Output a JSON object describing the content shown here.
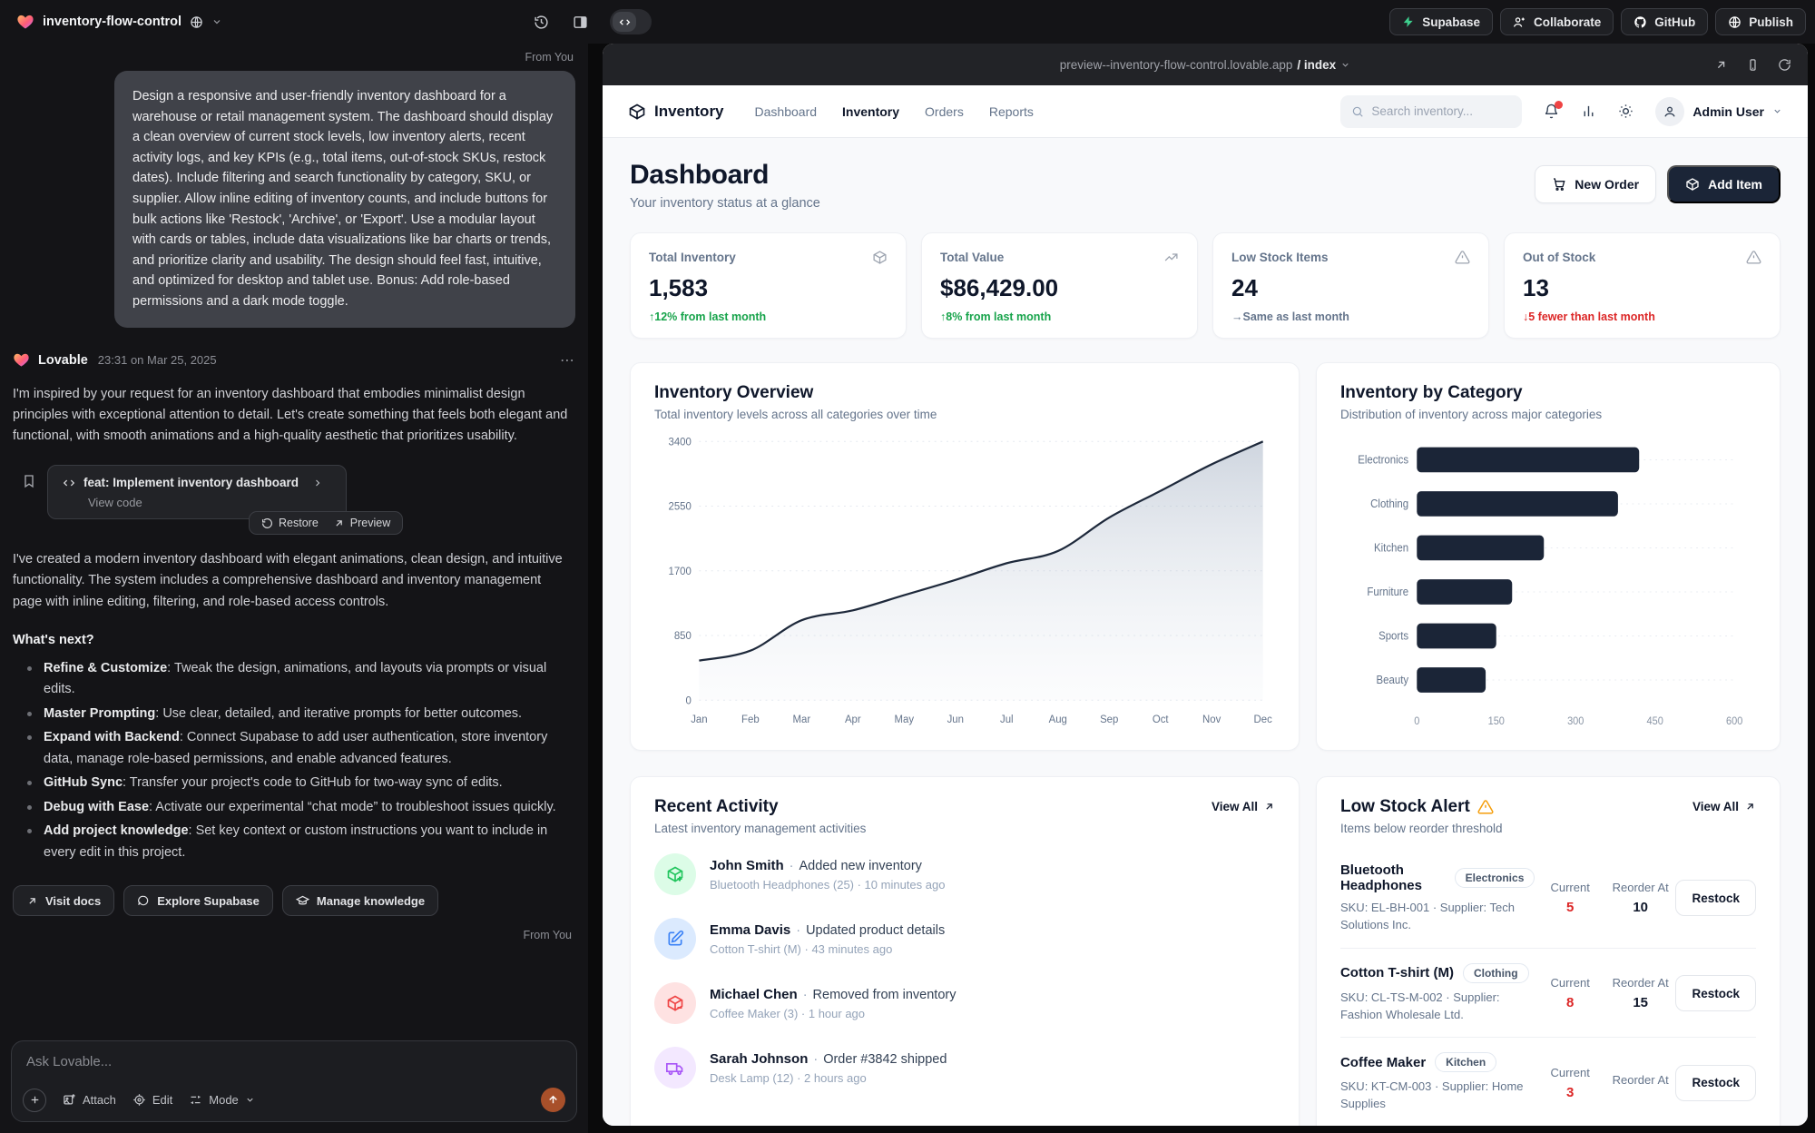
{
  "glyphs": {
    "more": "⋯",
    "dot": "·"
  },
  "colors": {
    "dark_navy": "#1b2537",
    "green": "#16a34a",
    "red": "#dc2626",
    "amber": "#f59e0b",
    "supabase_green": "#3ecf8e",
    "send_orange": "#a8502a"
  },
  "topbar": {
    "project_name": "inventory-flow-control",
    "buttons": {
      "supabase": "Supabase",
      "collaborate": "Collaborate",
      "github": "GitHub",
      "publish": "Publish"
    }
  },
  "chat": {
    "from_you": "From You",
    "user_message": "Design a responsive and user-friendly inventory dashboard for a warehouse or retail management system. The dashboard should display a clean overview of current stock levels, low inventory alerts, recent activity logs, and key KPIs (e.g., total items, out-of-stock SKUs, restock dates). Include filtering and search functionality by category, SKU, or supplier. Allow inline editing of inventory counts, and include buttons for bulk actions like 'Restock', 'Archive', or 'Export'. Use a modular layout with cards or tables, include data visualizations like bar charts or trends, and prioritize clarity and usability. The design should feel fast, intuitive, and optimized for desktop and tablet use. Bonus: Add role-based permissions and a dark mode toggle.",
    "assistant": {
      "name": "Lovable",
      "timestamp": "23:31 on Mar 25, 2025",
      "intro": "I'm inspired by your request for an inventory dashboard that embodies minimalist design principles with exceptional attention to detail. Let's create something that feels both elegant and functional, with smooth animations and a high-quality aesthetic that prioritizes usability.",
      "commit": {
        "title": "feat: Implement inventory dashboard",
        "view_code": "View code",
        "restore": "Restore",
        "preview": "Preview"
      },
      "result": "I've created a modern inventory dashboard with elegant animations, clean design, and intuitive functionality. The system includes a comprehensive dashboard and inventory management page with inline editing, filtering, and role-based access controls.",
      "whats_next": "What's next?",
      "bullets": [
        {
          "lead": "Refine & Customize",
          "text": ": Tweak the design, animations, and layouts via prompts or visual edits."
        },
        {
          "lead": "Master Prompting",
          "text": ": Use clear, detailed, and iterative prompts for better outcomes."
        },
        {
          "lead": "Expand with Backend",
          "text": ": Connect Supabase to add user authentication, store inventory data, manage role-based permissions, and enable advanced features."
        },
        {
          "lead": "GitHub Sync",
          "text": ": Transfer your project's code to GitHub for two-way sync of edits."
        },
        {
          "lead": "Debug with Ease",
          "text": ": Activate our experimental “chat mode” to troubleshoot issues quickly."
        },
        {
          "lead": "Add project knowledge",
          "text": ": Set key context or custom instructions you want to include in every edit in this project."
        }
      ],
      "actions": {
        "visit_docs": "Visit docs",
        "explore_supabase": "Explore Supabase",
        "manage_knowledge": "Manage knowledge"
      }
    },
    "composer": {
      "placeholder": "Ask Lovable...",
      "attach": "Attach",
      "edit": "Edit",
      "mode": "Mode"
    }
  },
  "preview": {
    "url": "preview--inventory-flow-control.lovable.app",
    "path": "/ index"
  },
  "app": {
    "brand": "Inventory",
    "nav": {
      "dashboard": "Dashboard",
      "inventory": "Inventory",
      "orders": "Orders",
      "reports": "Reports"
    },
    "search_placeholder": "Search inventory...",
    "user": "Admin User",
    "page": {
      "title": "Dashboard",
      "subtitle": "Your inventory status at a glance",
      "new_order": "New Order",
      "add_item": "Add Item"
    },
    "kpis": [
      {
        "label": "Total Inventory",
        "value": "1,583",
        "delta": "↑12% from last month"
      },
      {
        "label": "Total Value",
        "value": "$86,429.00",
        "delta": "↑8% from last month"
      },
      {
        "label": "Low Stock Items",
        "value": "24",
        "delta": "→Same as last month"
      },
      {
        "label": "Out of Stock",
        "value": "13",
        "delta": "↓5 fewer than last month"
      }
    ],
    "recent": {
      "title": "Recent Activity",
      "subtitle": "Latest inventory management activities",
      "view_all": "View All",
      "items": [
        {
          "name": "John Smith",
          "action": "Added new inventory",
          "detail": "Bluetooth Headphones (25) · 10 minutes ago"
        },
        {
          "name": "Emma Davis",
          "action": "Updated product details",
          "detail": "Cotton T-shirt (M) · 43 minutes ago"
        },
        {
          "name": "Michael Chen",
          "action": "Removed from inventory",
          "detail": "Coffee Maker (3) · 1 hour ago"
        },
        {
          "name": "Sarah Johnson",
          "action": "Order #3842 shipped",
          "detail": "Desk Lamp (12) · 2 hours ago"
        }
      ]
    },
    "low_stock": {
      "title": "Low Stock Alert",
      "subtitle": "Items below reorder threshold",
      "view_all": "View All",
      "current_label": "Current",
      "reorder_label": "Reorder At",
      "restock_label": "Restock",
      "items": [
        {
          "name": "Bluetooth Headphones",
          "category": "Electronics",
          "sku_line": "SKU: EL-BH-001 · Supplier: Tech Solutions Inc.",
          "current": "5",
          "reorder": "10"
        },
        {
          "name": "Cotton T-shirt (M)",
          "category": "Clothing",
          "sku_line": "SKU: CL-TS-M-002 · Supplier: Fashion Wholesale Ltd.",
          "current": "8",
          "reorder": "15"
        },
        {
          "name": "Coffee Maker",
          "category": "Kitchen",
          "sku_line": "SKU: KT-CM-003 · Supplier: Home Supplies",
          "current": "3",
          "reorder": ""
        }
      ]
    }
  },
  "chart_data": [
    {
      "type": "area",
      "title": "Inventory Overview",
      "subtitle": "Total inventory levels across all categories over time",
      "x": [
        "Jan",
        "Feb",
        "Mar",
        "Apr",
        "May",
        "Jun",
        "Jul",
        "Aug",
        "Sep",
        "Oct",
        "Nov",
        "Dec"
      ],
      "values": [
        520,
        650,
        1050,
        1180,
        1380,
        1580,
        1800,
        1960,
        2400,
        2750,
        3100,
        3400
      ],
      "ylim": [
        0,
        3400
      ],
      "yticks": [
        0,
        850,
        1700,
        2550,
        3400
      ],
      "grid": "dashed-horizontal",
      "line_color": "#1e293b"
    },
    {
      "type": "bar",
      "orientation": "horizontal",
      "title": "Inventory by Category",
      "subtitle": "Distribution of inventory across major categories",
      "categories": [
        "Electronics",
        "Clothing",
        "Kitchen",
        "Furniture",
        "Sports",
        "Beauty"
      ],
      "values": [
        420,
        380,
        240,
        180,
        150,
        130
      ],
      "xlim": [
        0,
        600
      ],
      "xticks": [
        0,
        150,
        300,
        450,
        600
      ],
      "bar_color": "#1b2537"
    }
  ]
}
